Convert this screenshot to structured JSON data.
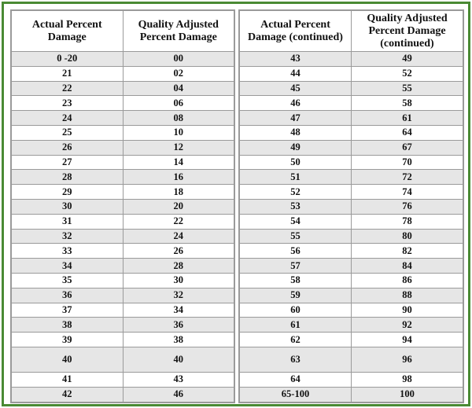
{
  "left_table": {
    "headers": [
      "Actual Percent Damage",
      "Quality Adjusted Percent Damage"
    ],
    "rows": [
      [
        "0 -20",
        "00"
      ],
      [
        "21",
        "02"
      ],
      [
        "22",
        "04"
      ],
      [
        "23",
        "06"
      ],
      [
        "24",
        "08"
      ],
      [
        "25",
        "10"
      ],
      [
        "26",
        "12"
      ],
      [
        "27",
        "14"
      ],
      [
        "28",
        "16"
      ],
      [
        "29",
        "18"
      ],
      [
        "30",
        "20"
      ],
      [
        "31",
        "22"
      ],
      [
        "32",
        "24"
      ],
      [
        "33",
        "26"
      ],
      [
        "34",
        "28"
      ],
      [
        "35",
        "30"
      ],
      [
        "36",
        "32"
      ],
      [
        "37",
        "34"
      ],
      [
        "38",
        "36"
      ],
      [
        "39",
        "38"
      ],
      [
        "40",
        "40"
      ],
      [
        "41",
        "43"
      ],
      [
        "42",
        "46"
      ]
    ]
  },
  "right_table": {
    "headers": [
      "Actual Percent Damage (continued)",
      "Quality Adjusted Percent Damage (continued)"
    ],
    "rows": [
      [
        "43",
        "49"
      ],
      [
        "44",
        "52"
      ],
      [
        "45",
        "55"
      ],
      [
        "46",
        "58"
      ],
      [
        "47",
        "61"
      ],
      [
        "48",
        "64"
      ],
      [
        "49",
        "67"
      ],
      [
        "50",
        "70"
      ],
      [
        "51",
        "72"
      ],
      [
        "52",
        "74"
      ],
      [
        "53",
        "76"
      ],
      [
        "54",
        "78"
      ],
      [
        "55",
        "80"
      ],
      [
        "56",
        "82"
      ],
      [
        "57",
        "84"
      ],
      [
        "58",
        "86"
      ],
      [
        "59",
        "88"
      ],
      [
        "60",
        "90"
      ],
      [
        "61",
        "92"
      ],
      [
        "62",
        "94"
      ],
      [
        "63",
        "96"
      ],
      [
        "64",
        "98"
      ],
      [
        "65-100",
        "100"
      ]
    ]
  },
  "colors": {
    "border_accent": "#4a8a34",
    "row_shade": "#e6e6e6",
    "grid": "#9a9a9a"
  }
}
